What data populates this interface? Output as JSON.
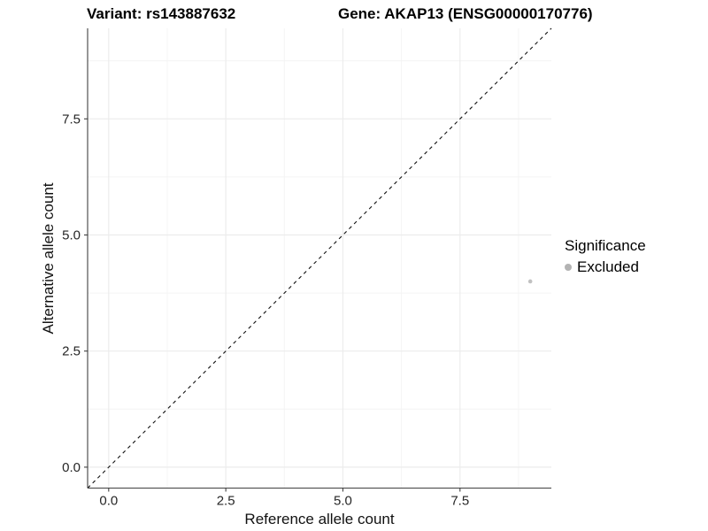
{
  "header": {
    "variant_title": "Variant: rs143887632",
    "gene_title": "Gene: AKAP13 (ENSG00000170776)"
  },
  "chart_data": {
    "type": "scatter",
    "xlabel": "Reference allele count",
    "ylabel": "Alternative allele count",
    "xlim": [
      -0.45,
      9.45
    ],
    "ylim": [
      -0.45,
      9.45
    ],
    "x_ticks": [
      0,
      2.5,
      5,
      7.5
    ],
    "x_tick_labels": [
      "0.0",
      "2.5",
      "5.0",
      "7.5"
    ],
    "y_ticks": [
      0,
      2.5,
      5,
      7.5
    ],
    "y_tick_labels": [
      "0.0",
      "2.5",
      "5.0",
      "7.5"
    ],
    "x_minor_ticks": [
      1.25,
      3.75,
      6.25,
      8.75
    ],
    "y_minor_ticks": [
      1.25,
      3.75,
      6.25,
      8.75
    ],
    "grid": true,
    "series": [
      {
        "name": "Excluded",
        "marker": "circle",
        "color": "#c1c1c1",
        "point_radius": 2.3,
        "points": [
          {
            "x": 9,
            "y": 4
          }
        ]
      }
    ],
    "reference_line": {
      "equation": "y = x",
      "from": [
        -0.45,
        -0.45
      ],
      "to": [
        9.45,
        9.45
      ],
      "style": "dashed",
      "color": "#111111"
    }
  },
  "legend": {
    "title": "Significance",
    "position": "right",
    "items": [
      {
        "label": "Excluded",
        "color": "#b3b3b3",
        "marker": "circle"
      }
    ]
  },
  "colors": {
    "background": "#ffffff",
    "grid_major": "#ececec",
    "grid_minor": "#f4f4f4",
    "axis_line": "#404040",
    "tick_label": "#262626",
    "title_text": "#000000"
  }
}
